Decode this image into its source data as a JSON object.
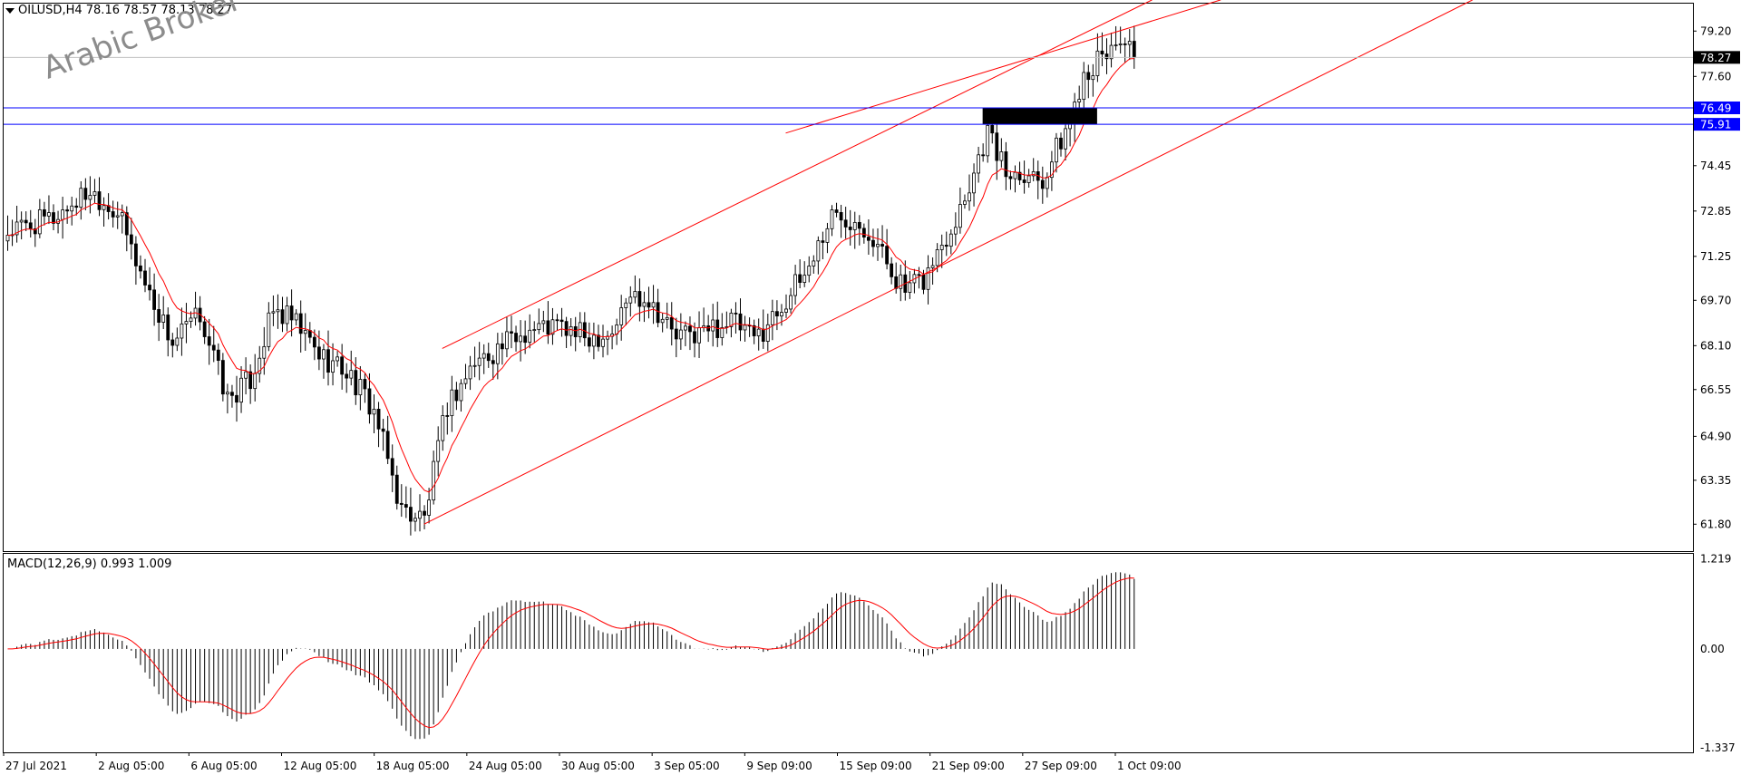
{
  "header": {
    "symbol": "OILUSD,H4",
    "ohlc": "78.16 78.57 78.13 78.27"
  },
  "watermark": "Arabic Broker",
  "macd_header": {
    "label": "MACD(12,26,9)",
    "values": "0.993 1.009"
  },
  "colors": {
    "background": "#ffffff",
    "candle": "#000000",
    "ma_line": "#ff0000",
    "channel": "#ff0000",
    "hline": "#0000ff",
    "label_bg_blue": "#0000ff",
    "label_bg_black": "#000000",
    "zone": "#000000",
    "macd_hist": "#000000",
    "macd_signal": "#ff0000"
  },
  "chart_data": [
    {
      "type": "candlestick",
      "timeframe": "H4",
      "ylim": [
        61.0,
        80.0
      ],
      "y_ticks": [
        "79.20",
        "77.60",
        "74.45",
        "72.85",
        "71.25",
        "69.70",
        "68.10",
        "66.55",
        "64.90",
        "63.35",
        "61.80"
      ],
      "x_ticks": [
        "27 Jul 2021",
        "2 Aug 05:00",
        "6 Aug 05:00",
        "12 Aug 05:00",
        "18 Aug 05:00",
        "24 Aug 05:00",
        "30 Aug 05:00",
        "3 Sep 05:00",
        "9 Sep 09:00",
        "15 Sep 09:00",
        "21 Sep 09:00",
        "27 Sep 09:00",
        "1 Oct 09:00"
      ],
      "price_labels": [
        {
          "value": "78.27",
          "style": "current"
        },
        {
          "value": "76.49",
          "style": "level"
        },
        {
          "value": "75.91",
          "style": "level"
        }
      ],
      "anchors": [
        [
          0,
          72.1
        ],
        [
          10,
          72.6
        ],
        [
          18,
          73.6
        ],
        [
          24,
          72.8
        ],
        [
          30,
          70.3
        ],
        [
          36,
          68.2
        ],
        [
          42,
          69.2
        ],
        [
          48,
          66.2
        ],
        [
          53,
          66.9
        ],
        [
          58,
          69.3
        ],
        [
          62,
          69.0
        ],
        [
          68,
          67.8
        ],
        [
          74,
          67.2
        ],
        [
          80,
          65.8
        ],
        [
          86,
          62.3
        ],
        [
          91,
          62.0
        ],
        [
          96,
          66.0
        ],
        [
          102,
          67.5
        ],
        [
          108,
          68.1
        ],
        [
          114,
          68.7
        ],
        [
          120,
          68.8
        ],
        [
          126,
          68.4
        ],
        [
          132,
          68.6
        ],
        [
          136,
          69.9
        ],
        [
          140,
          69.8
        ],
        [
          146,
          68.4
        ],
        [
          152,
          68.6
        ],
        [
          158,
          69.0
        ],
        [
          163,
          68.3
        ],
        [
          168,
          69.3
        ],
        [
          174,
          70.6
        ],
        [
          180,
          72.7
        ],
        [
          186,
          72.6
        ],
        [
          190,
          71.6
        ],
        [
          196,
          70.0
        ],
        [
          200,
          70.4
        ],
        [
          206,
          72.3
        ],
        [
          210,
          73.8
        ],
        [
          214,
          75.7
        ],
        [
          218,
          74.2
        ],
        [
          222,
          74.3
        ],
        [
          226,
          74.0
        ],
        [
          232,
          76.0
        ],
        [
          235,
          77.8
        ],
        [
          239,
          78.2
        ],
        [
          243,
          79.0
        ],
        [
          246,
          78.27
        ]
      ],
      "indicators": {
        "ma": "moving average (red line)",
        "channel": "ascending channel (red lines)",
        "levels": [
          76.49,
          75.91
        ],
        "zone": [
          75.91,
          76.49
        ]
      }
    },
    {
      "type": "bar",
      "indicator": "MACD(12,26,9)",
      "main": 0.993,
      "signal": 1.009,
      "ylim": [
        -1.337,
        1.219
      ],
      "y_ticks": [
        "1.219",
        "0.00",
        "-1.337"
      ]
    }
  ]
}
